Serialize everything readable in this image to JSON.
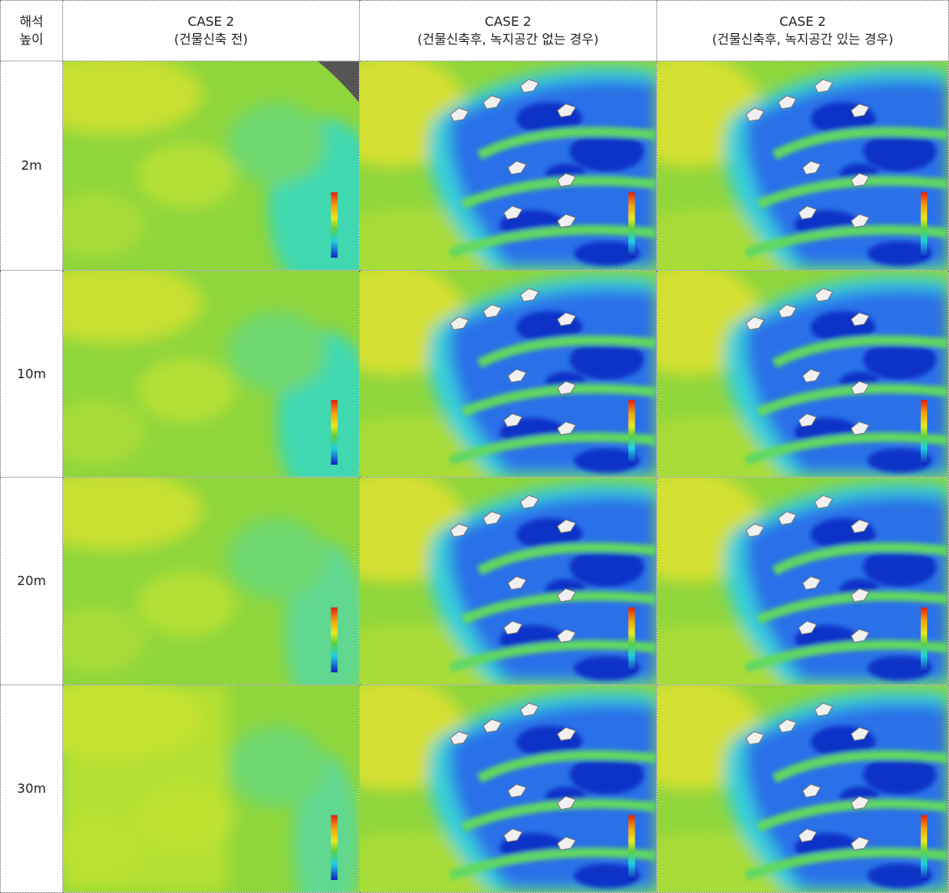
{
  "header": {
    "height_label": [
      "해석",
      "높이"
    ],
    "cases": [
      {
        "title": "CASE 2",
        "subtitle": "(건물신축 전)"
      },
      {
        "title": "CASE 2",
        "subtitle": "(건물신축후, 녹지공간 없는 경우)"
      },
      {
        "title": "CASE 2",
        "subtitle": "(건물신축후, 녹지공간 있는 경우)"
      }
    ]
  },
  "rows": [
    {
      "height": "2m"
    },
    {
      "height": "10m"
    },
    {
      "height": "20m"
    },
    {
      "height": "30m"
    }
  ]
}
